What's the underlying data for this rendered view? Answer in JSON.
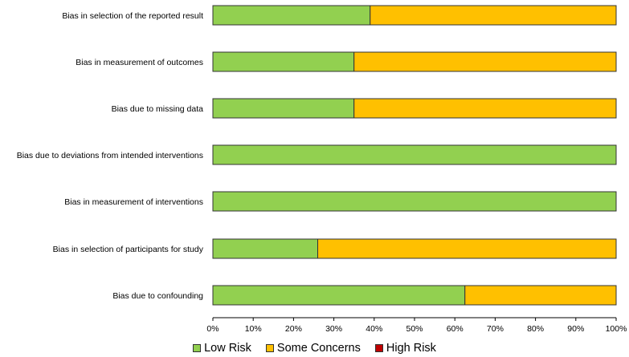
{
  "chart_data": {
    "type": "bar",
    "orientation": "horizontal",
    "stacked": true,
    "categories": [
      "Bias in selection of the reported result",
      "Bias in measurement of outcomes",
      "Bias due to missing data",
      "Bias due to deviations from intended interventions",
      "Bias in measurement of interventions",
      "Bias in selection of participants for study",
      "Bias due to confounding"
    ],
    "series": [
      {
        "name": "Low Risk",
        "color": "#92d050",
        "values": [
          39,
          35,
          35,
          100,
          100,
          26,
          62.5
        ]
      },
      {
        "name": "Some Concerns",
        "color": "#ffc000",
        "values": [
          61,
          65,
          65,
          0,
          0,
          74,
          37.5
        ]
      },
      {
        "name": "High Risk",
        "color": "#c00000",
        "values": [
          0,
          0,
          0,
          0,
          0,
          0,
          0
        ]
      }
    ],
    "xlim": [
      0,
      100
    ],
    "xticks": [
      "0%",
      "10%",
      "20%",
      "30%",
      "40%",
      "50%",
      "60%",
      "70%",
      "80%",
      "90%",
      "100%"
    ],
    "xlabel": "",
    "ylabel": "",
    "title": "",
    "grid": false,
    "legend_position": "bottom"
  }
}
